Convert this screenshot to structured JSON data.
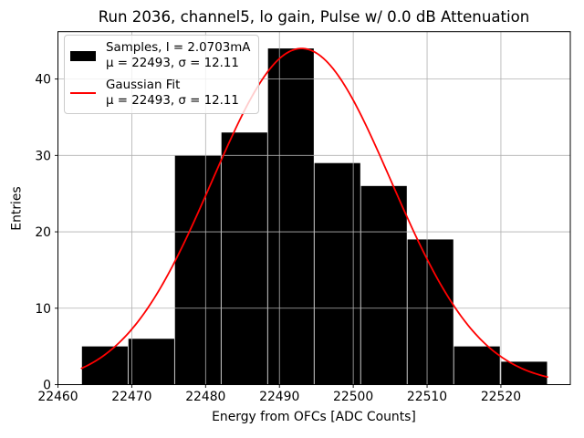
{
  "chart_data": {
    "type": "bar",
    "subtype": "histogram-with-gaussian-fit",
    "title": "Run 2036, channel5, lo gain, Pulse w/ 0.0 dB Attenuation",
    "xlabel": "Energy from OFCs [ADC Counts]",
    "ylabel": "Entries",
    "xlim": [
      22460.0,
      22529.4
    ],
    "ylim": [
      0,
      46.2
    ],
    "xticks": [
      22460,
      22470,
      22480,
      22490,
      22500,
      22510,
      22520
    ],
    "yticks": [
      0,
      10,
      20,
      30,
      40
    ],
    "grid": true,
    "grid_color": "#b0b0b0",
    "bar_color": "#000000",
    "bin_edges": [
      22463.2,
      22469.5,
      22475.8,
      22482.1,
      22488.4,
      22494.7,
      22501.0,
      22507.3,
      22513.6,
      22519.9,
      22526.3
    ],
    "counts": [
      5,
      6,
      30,
      33,
      44,
      29,
      26,
      19,
      5,
      3
    ],
    "fit_curve": {
      "type": "gaussian",
      "mu": 22493,
      "sigma": 12.11,
      "amplitude": 44.0,
      "color": "#ff0000",
      "x_range": [
        22463.2,
        22526.3
      ]
    },
    "legend_position": "upper left"
  },
  "legend": {
    "entries": [
      {
        "swatch": "patch",
        "color": "#000000",
        "line1": "Samples, I = 2.0703mA",
        "line2": "μ = 22493, σ = 12.11"
      },
      {
        "swatch": "line",
        "color": "#ff0000",
        "line1": "Gaussian Fit",
        "line2": "μ = 22493, σ = 12.11"
      }
    ]
  }
}
